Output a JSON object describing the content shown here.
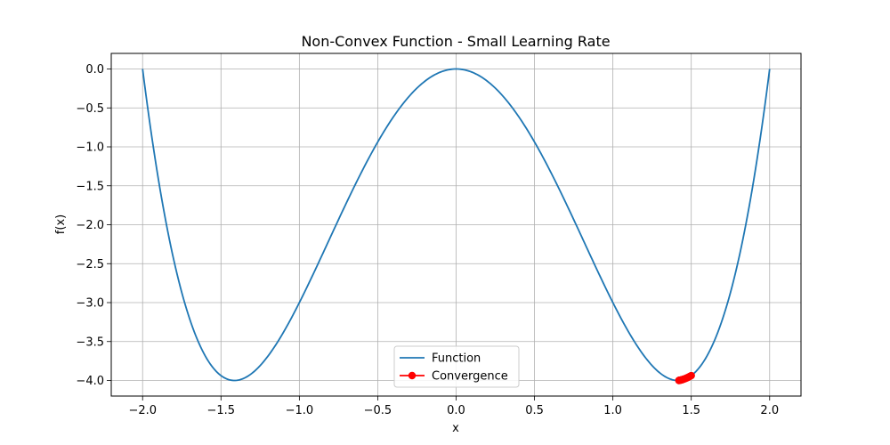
{
  "chart_data": {
    "type": "line",
    "title": "Non-Convex Function - Small Learning Rate",
    "xlabel": "x",
    "ylabel": "f(x)",
    "xlim": [
      -2.2,
      2.2
    ],
    "ylim": [
      -4.2,
      0.2
    ],
    "xticks": [
      -2.0,
      -1.5,
      -1.0,
      -0.5,
      0.0,
      0.5,
      1.0,
      1.5,
      2.0
    ],
    "xtick_labels": [
      "−2.0",
      "−1.5",
      "−1.0",
      "−0.5",
      "0.0",
      "0.5",
      "1.0",
      "1.5",
      "2.0"
    ],
    "yticks": [
      0.0,
      -0.5,
      -1.0,
      -1.5,
      -2.0,
      -2.5,
      -3.0,
      -3.5,
      -4.0
    ],
    "ytick_labels": [
      "0.0",
      "−0.5",
      "−1.0",
      "−1.5",
      "−2.0",
      "−2.5",
      "−3.0",
      "−3.5",
      "−4.0"
    ],
    "grid": true,
    "legend_position": "lower-center",
    "series": [
      {
        "name": "Function",
        "color": "#1f77b4",
        "function": "x^4 - 4x^2",
        "x_range": [
          -2.0,
          2.0
        ]
      },
      {
        "name": "Convergence",
        "color": "#ff0000",
        "marker": "circle",
        "x": [
          1.5,
          1.489,
          1.48,
          1.472,
          1.465,
          1.459,
          1.454,
          1.449,
          1.445,
          1.442,
          1.439,
          1.436,
          1.434,
          1.432,
          1.43,
          1.428,
          1.426,
          1.425,
          1.424,
          1.423,
          1.422,
          1.421
        ],
        "y": [
          -3.9375,
          -3.95,
          -3.959,
          -3.967,
          -3.973,
          -3.978,
          -3.982,
          -3.985,
          -3.988,
          -3.99,
          -3.992,
          -3.993,
          -3.994,
          -3.995,
          -3.996,
          -3.997,
          -3.998,
          -3.998,
          -3.999,
          -3.999,
          -3.999,
          -4.0
        ]
      }
    ]
  }
}
